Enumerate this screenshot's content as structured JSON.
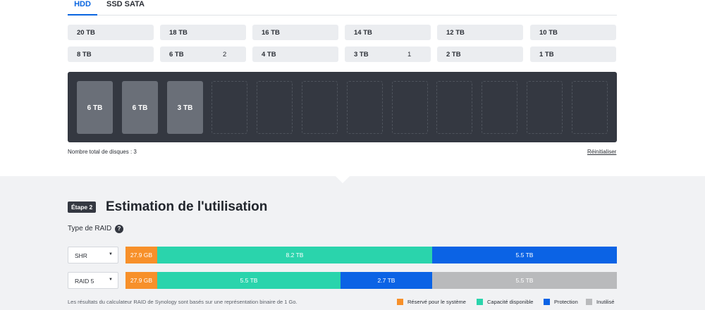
{
  "tabs": [
    {
      "label": "HDD",
      "active": true
    },
    {
      "label": "SSD SATA",
      "active": false
    }
  ],
  "drive_sizes": [
    {
      "label": "20 TB",
      "count": ""
    },
    {
      "label": "18 TB",
      "count": ""
    },
    {
      "label": "16 TB",
      "count": ""
    },
    {
      "label": "14 TB",
      "count": ""
    },
    {
      "label": "12 TB",
      "count": ""
    },
    {
      "label": "10 TB",
      "count": ""
    },
    {
      "label": "8 TB",
      "count": ""
    },
    {
      "label": "6 TB",
      "count": "2"
    },
    {
      "label": "4 TB",
      "count": ""
    },
    {
      "label": "3 TB",
      "count": "1"
    },
    {
      "label": "2 TB",
      "count": ""
    },
    {
      "label": "1 TB",
      "count": ""
    }
  ],
  "bays": {
    "filled": [
      "6 TB",
      "6 TB",
      "3 TB"
    ],
    "total_slots": 12
  },
  "disk_total_text": "Nombre total de disques : 3",
  "reset_label": "Réinitialiser",
  "step": {
    "badge": "Étape 2",
    "title": "Estimation de l'utilisation",
    "raid_type_label": "Type de RAID",
    "help_icon": "?"
  },
  "raid_rows": [
    {
      "select_value": "SHR",
      "segments": [
        {
          "type": "reserved",
          "label": "27.9 GB",
          "fraction": 0.065
        },
        {
          "type": "available",
          "label": "8.2 TB",
          "fraction": 0.56
        },
        {
          "type": "protection",
          "label": "5.5 TB",
          "fraction": 0.375
        }
      ]
    },
    {
      "select_value": "RAID 5",
      "segments": [
        {
          "type": "reserved",
          "label": "27.9 GB",
          "fraction": 0.065
        },
        {
          "type": "available",
          "label": "5.5 TB",
          "fraction": 0.373
        },
        {
          "type": "protection",
          "label": "2.7 TB",
          "fraction": 0.187
        },
        {
          "type": "unused",
          "label": "5.5 TB",
          "fraction": 0.375
        }
      ]
    }
  ],
  "footnote": "Les résultats du calculateur RAID de Synology sont basés sur une représentation binaire de 1 Go.",
  "legend": [
    {
      "type": "reserved",
      "label": "Réservé pour le système"
    },
    {
      "type": "available",
      "label": "Capacité disponible"
    },
    {
      "type": "protection",
      "label": "Protection"
    },
    {
      "type": "unused",
      "label": "Inutilisé"
    }
  ],
  "colors": {
    "reserved": "#f7902a",
    "available": "#2ad4ac",
    "protection": "#0b63e5",
    "unused": "#b9babc",
    "accent": "#0a66e0"
  }
}
